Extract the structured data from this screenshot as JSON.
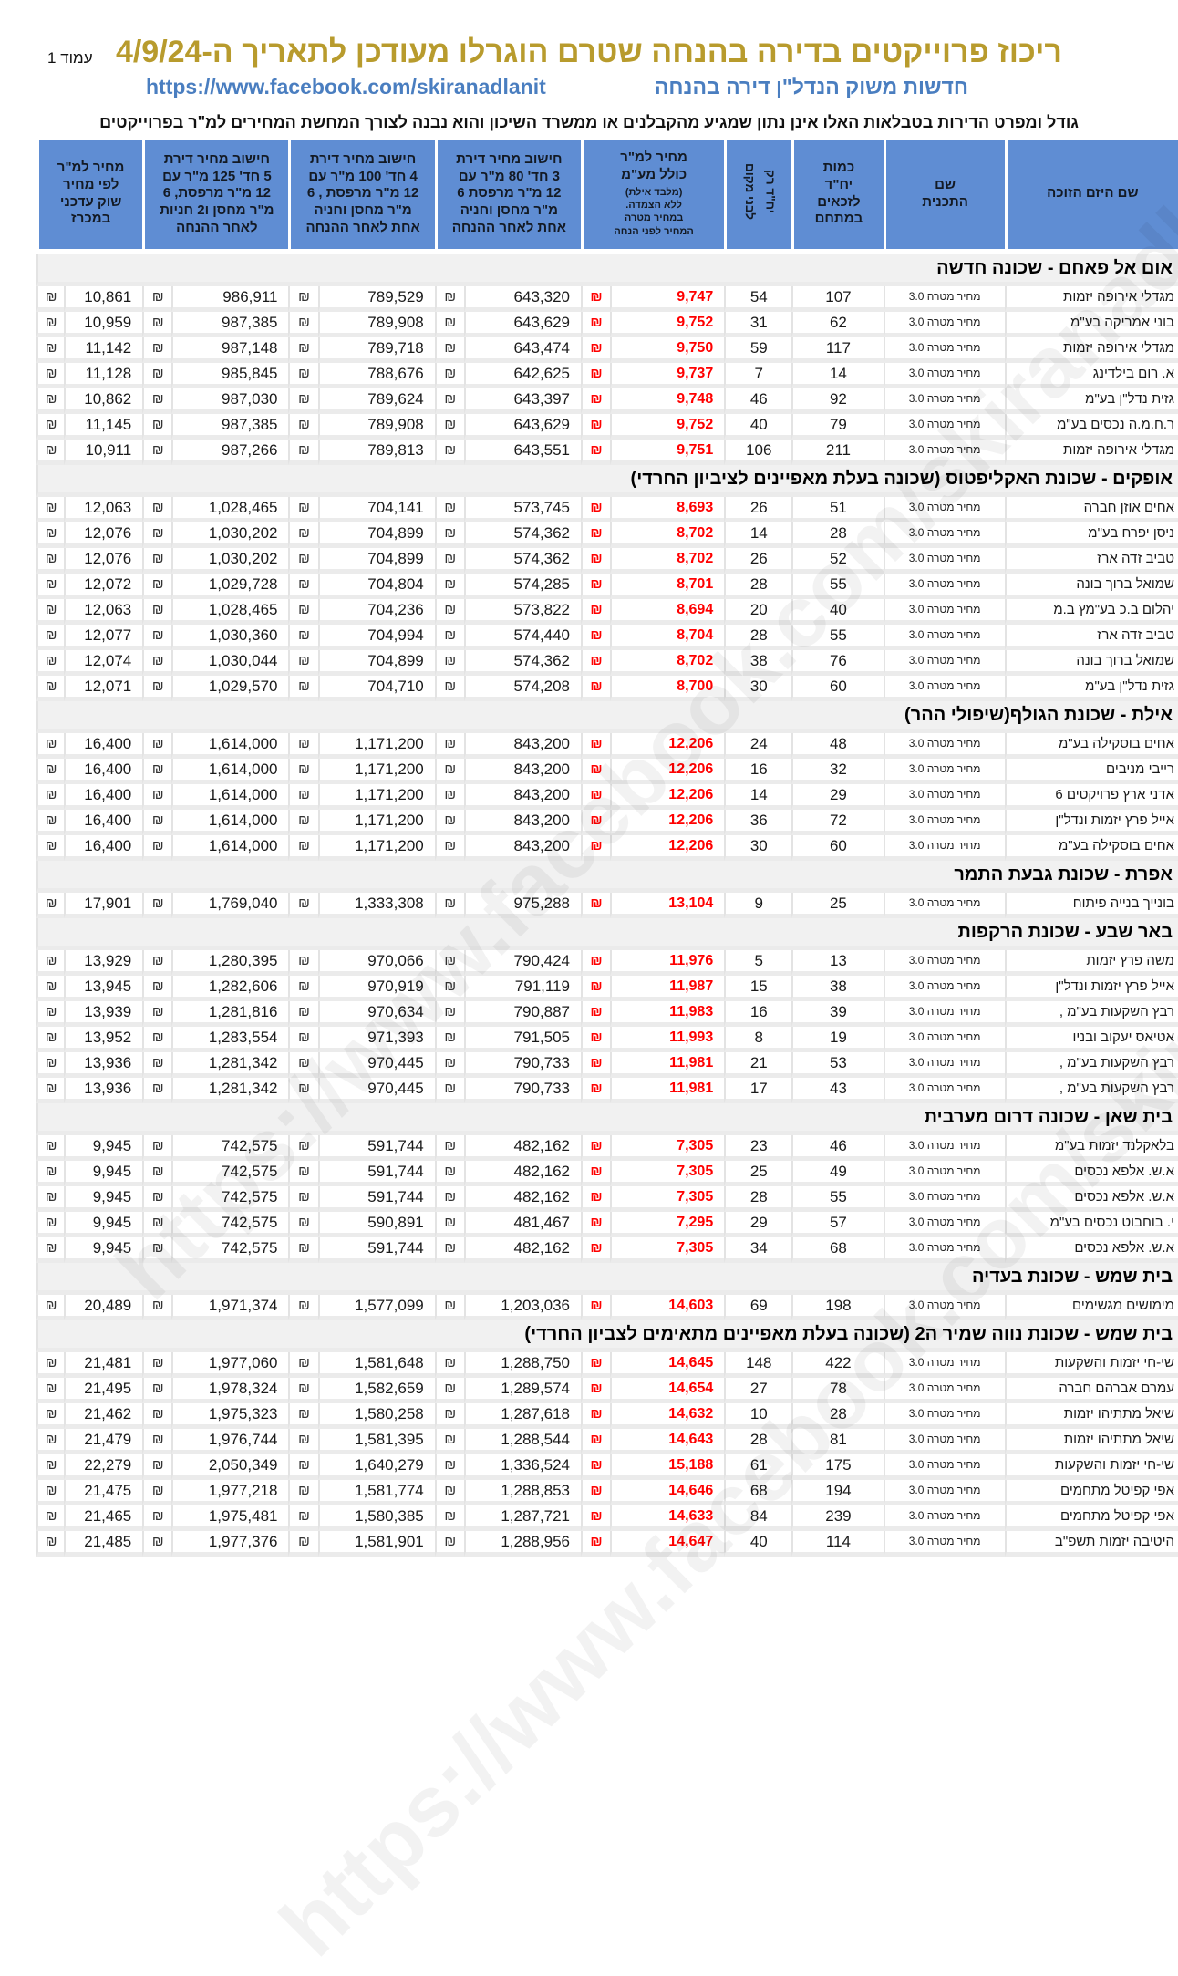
{
  "page": {
    "page_label": "עמוד 1",
    "title": "ריכוז פרוייקטים בדירה בהנחה שטרם הוגרלו מעודכן לתאריך ה-4/9/24",
    "subtitle_right": "חדשות משוק הנדל\"ן דירה בהנחה",
    "link": "https://www.facebook.com/skiranadlanit",
    "disclaimer": "גודל ומפרט הדירות בטבלאות האלו אינן נתון שמגיע מהקבלנים או ממשרד השיכון והוא נבנה לצורך המחשת המחירים למ\"ר בפרוייקטים",
    "watermark": "https://www.facebook.com/skiranadlanit"
  },
  "colors": {
    "title_gold": "#b89b2d",
    "link_blue": "#4a7ec0",
    "header_blue": "#5f8dd3",
    "price_red": "#ff0000",
    "row_separator": "#ebebeb"
  },
  "table": {
    "currency_symbol": "₪",
    "headers": {
      "developer": "שם היזם הזוכה",
      "plan": "שם\nהתכנית",
      "units_total": "כמות\nיח\"ד\nלזכאים\nבמתחם",
      "units_local": "יח\"ד רק\nלבני מקום",
      "price_sqm_main": "מחיר למ\"ר\nכולל מע\"מ",
      "price_sqm_sub": "(מלבד אילת)\nללא הצמדה.\nבמחיר מטרה\nהמחיר לפני הנחה",
      "apt3": "חישוב מחיר דירת\n3 חד' 80 מ\"ר עם\n12 מ\"ר מרפסת 6\nמ\"ר מחסן וחניה\nאחת לאחר ההנחה",
      "apt4": "חישוב מחיר דירת\n4 חד' 100 מ\"ר עם\n12 מ\"ר מרפסת , 6\nמ\"ר מחסן וחניה\nאחת לאחר ההנחה",
      "apt5": "חישוב מחיר דירת\n5 חד' 125 מ\"ר עם\n12 מ\"ר מרפסת, 6\nמ\"ר מחסן ו2 חניות\nלאחר ההנחה",
      "market_sqm": "מחיר למ\"ר\nלפי מחיר\nשוק עדכני\nבמכרז"
    },
    "sections": [
      {
        "name": "אום אל פאחם - שכונה חדשה",
        "rows": [
          {
            "developer": "מגדלי אירופה יזמות",
            "plan": "מחיר מטרה 3.0",
            "units_total": "107",
            "units_local": "54",
            "price_sqm": "9,747",
            "apt3": "643,320",
            "apt4": "789,529",
            "apt5": "986,911",
            "market_sqm": "10,861"
          },
          {
            "developer": "בוני אמריקה בע\"מ",
            "plan": "מחיר מטרה 3.0",
            "units_total": "62",
            "units_local": "31",
            "price_sqm": "9,752",
            "apt3": "643,629",
            "apt4": "789,908",
            "apt5": "987,385",
            "market_sqm": "10,959"
          },
          {
            "developer": "מגדלי אירופה יזמות",
            "plan": "מחיר מטרה 3.0",
            "units_total": "117",
            "units_local": "59",
            "price_sqm": "9,750",
            "apt3": "643,474",
            "apt4": "789,718",
            "apt5": "987,148",
            "market_sqm": "11,142"
          },
          {
            "developer": "א. רום בילדינג",
            "plan": "מחיר מטרה 3.0",
            "units_total": "14",
            "units_local": "7",
            "price_sqm": "9,737",
            "apt3": "642,625",
            "apt4": "788,676",
            "apt5": "985,845",
            "market_sqm": "11,128"
          },
          {
            "developer": "גזית נדל\"ן בע\"מ",
            "plan": "מחיר מטרה 3.0",
            "units_total": "92",
            "units_local": "46",
            "price_sqm": "9,748",
            "apt3": "643,397",
            "apt4": "789,624",
            "apt5": "987,030",
            "market_sqm": "10,862"
          },
          {
            "developer": "ר.ח.מ.ה נכסים בע\"מ",
            "plan": "מחיר מטרה 3.0",
            "units_total": "79",
            "units_local": "40",
            "price_sqm": "9,752",
            "apt3": "643,629",
            "apt4": "789,908",
            "apt5": "987,385",
            "market_sqm": "11,145"
          },
          {
            "developer": "מגדלי אירופה יזמות",
            "plan": "מחיר מטרה 3.0",
            "units_total": "211",
            "units_local": "106",
            "price_sqm": "9,751",
            "apt3": "643,551",
            "apt4": "789,813",
            "apt5": "987,266",
            "market_sqm": "10,911"
          }
        ]
      },
      {
        "name": "אופקים - שכונת האקליפטוס (שכונה בעלת מאפיינים לציביון החרדי)",
        "rows": [
          {
            "developer": "אחים אוזן חברה",
            "plan": "מחיר מטרה 3.0",
            "units_total": "51",
            "units_local": "26",
            "price_sqm": "8,693",
            "apt3": "573,745",
            "apt4": "704,141",
            "apt5": "1,028,465",
            "market_sqm": "12,063"
          },
          {
            "developer": "ניסן יפרח בע\"מ",
            "plan": "מחיר מטרה 3.0",
            "units_total": "28",
            "units_local": "14",
            "price_sqm": "8,702",
            "apt3": "574,362",
            "apt4": "704,899",
            "apt5": "1,030,202",
            "market_sqm": "12,076"
          },
          {
            "developer": "טביב זדה ארז",
            "plan": "מחיר מטרה 3.0",
            "units_total": "52",
            "units_local": "26",
            "price_sqm": "8,702",
            "apt3": "574,362",
            "apt4": "704,899",
            "apt5": "1,030,202",
            "market_sqm": "12,076"
          },
          {
            "developer": "שמואל ברוך בונה",
            "plan": "מחיר מטרה 3.0",
            "units_total": "55",
            "units_local": "28",
            "price_sqm": "8,701",
            "apt3": "574,285",
            "apt4": "704,804",
            "apt5": "1,029,728",
            "market_sqm": "12,072"
          },
          {
            "developer": "יהלום ב.כ בע\"מץ ב.מ",
            "plan": "מחיר מטרה 3.0",
            "units_total": "40",
            "units_local": "20",
            "price_sqm": "8,694",
            "apt3": "573,822",
            "apt4": "704,236",
            "apt5": "1,028,465",
            "market_sqm": "12,063"
          },
          {
            "developer": "טביב זדה ארז",
            "plan": "מחיר מטרה 3.0",
            "units_total": "55",
            "units_local": "28",
            "price_sqm": "8,704",
            "apt3": "574,440",
            "apt4": "704,994",
            "apt5": "1,030,360",
            "market_sqm": "12,077"
          },
          {
            "developer": "שמואל ברוך בונה",
            "plan": "מחיר מטרה 3.0",
            "units_total": "76",
            "units_local": "38",
            "price_sqm": "8,702",
            "apt3": "574,362",
            "apt4": "704,899",
            "apt5": "1,030,044",
            "market_sqm": "12,074"
          },
          {
            "developer": "גזית נדל\"ן בע\"מ",
            "plan": "מחיר מטרה 3.0",
            "units_total": "60",
            "units_local": "30",
            "price_sqm": "8,700",
            "apt3": "574,208",
            "apt4": "704,710",
            "apt5": "1,029,570",
            "market_sqm": "12,071"
          }
        ]
      },
      {
        "name": "אילת - שכונת הגולף(שיפולי ההר)",
        "rows": [
          {
            "developer": "אחים בוסקילה בע\"מ",
            "plan": "מחיר מטרה 3.0",
            "units_total": "48",
            "units_local": "24",
            "price_sqm": "12,206",
            "apt3": "843,200",
            "apt4": "1,171,200",
            "apt5": "1,614,000",
            "market_sqm": "16,400"
          },
          {
            "developer": "רייבי מניבים",
            "plan": "מחיר מטרה 3.0",
            "units_total": "32",
            "units_local": "16",
            "price_sqm": "12,206",
            "apt3": "843,200",
            "apt4": "1,171,200",
            "apt5": "1,614,000",
            "market_sqm": "16,400"
          },
          {
            "developer": "אדני ארץ פרויקטים 6",
            "plan": "מחיר מטרה 3.0",
            "units_total": "29",
            "units_local": "14",
            "price_sqm": "12,206",
            "apt3": "843,200",
            "apt4": "1,171,200",
            "apt5": "1,614,000",
            "market_sqm": "16,400"
          },
          {
            "developer": "אייל פרץ יזמות ונדל\"ן",
            "plan": "מחיר מטרה 3.0",
            "units_total": "72",
            "units_local": "36",
            "price_sqm": "12,206",
            "apt3": "843,200",
            "apt4": "1,171,200",
            "apt5": "1,614,000",
            "market_sqm": "16,400"
          },
          {
            "developer": "אחים בוסקילה בע\"מ",
            "plan": "מחיר מטרה 3.0",
            "units_total": "60",
            "units_local": "30",
            "price_sqm": "12,206",
            "apt3": "843,200",
            "apt4": "1,171,200",
            "apt5": "1,614,000",
            "market_sqm": "16,400"
          }
        ]
      },
      {
        "name": "אפרת - שכונת גבעת התמר",
        "rows": [
          {
            "developer": "בונייך בנייה פיתוח",
            "plan": "מחיר מטרה 3.0",
            "units_total": "25",
            "units_local": "9",
            "price_sqm": "13,104",
            "apt3": "975,288",
            "apt4": "1,333,308",
            "apt5": "1,769,040",
            "market_sqm": "17,901"
          }
        ]
      },
      {
        "name": "באר שבע - שכונת הרקפות",
        "rows": [
          {
            "developer": "משה פרץ יזמות",
            "plan": "מחיר מטרה 3.0",
            "units_total": "13",
            "units_local": "5",
            "price_sqm": "11,976",
            "apt3": "790,424",
            "apt4": "970,066",
            "apt5": "1,280,395",
            "market_sqm": "13,929"
          },
          {
            "developer": "אייל פרץ יזמות ונדל\"ן",
            "plan": "מחיר מטרה 3.0",
            "units_total": "38",
            "units_local": "15",
            "price_sqm": "11,987",
            "apt3": "791,119",
            "apt4": "970,919",
            "apt5": "1,282,606",
            "market_sqm": "13,945"
          },
          {
            "developer": "רבץ השקעות בע\"מ ,",
            "plan": "מחיר מטרה 3.0",
            "units_total": "39",
            "units_local": "16",
            "price_sqm": "11,983",
            "apt3": "790,887",
            "apt4": "970,634",
            "apt5": "1,281,816",
            "market_sqm": "13,939"
          },
          {
            "developer": "אטיאס יעקוב ובניו",
            "plan": "מחיר מטרה 3.0",
            "units_total": "19",
            "units_local": "8",
            "price_sqm": "11,993",
            "apt3": "791,505",
            "apt4": "971,393",
            "apt5": "1,283,554",
            "market_sqm": "13,952"
          },
          {
            "developer": "רבץ השקעות בע\"מ ,",
            "plan": "מחיר מטרה 3.0",
            "units_total": "53",
            "units_local": "21",
            "price_sqm": "11,981",
            "apt3": "790,733",
            "apt4": "970,445",
            "apt5": "1,281,342",
            "market_sqm": "13,936"
          },
          {
            "developer": "רבץ השקעות בע\"מ ,",
            "plan": "מחיר מטרה 3.0",
            "units_total": "43",
            "units_local": "17",
            "price_sqm": "11,981",
            "apt3": "790,733",
            "apt4": "970,445",
            "apt5": "1,281,342",
            "market_sqm": "13,936"
          }
        ]
      },
      {
        "name": "בית שאן - שכונה דרום מערבית",
        "rows": [
          {
            "developer": "בלאקלנד יזמות בע\"מ",
            "plan": "מחיר מטרה 3.0",
            "units_total": "46",
            "units_local": "23",
            "price_sqm": "7,305",
            "apt3": "482,162",
            "apt4": "591,744",
            "apt5": "742,575",
            "market_sqm": "9,945"
          },
          {
            "developer": "א.ש. אלפא נכסים",
            "plan": "מחיר מטרה 3.0",
            "units_total": "49",
            "units_local": "25",
            "price_sqm": "7,305",
            "apt3": "482,162",
            "apt4": "591,744",
            "apt5": "742,575",
            "market_sqm": "9,945"
          },
          {
            "developer": "א.ש. אלפא נכסים",
            "plan": "מחיר מטרה 3.0",
            "units_total": "55",
            "units_local": "28",
            "price_sqm": "7,305",
            "apt3": "482,162",
            "apt4": "591,744",
            "apt5": "742,575",
            "market_sqm": "9,945"
          },
          {
            "developer": "י. בוחבוט נכסים בע\"מ",
            "plan": "מחיר מטרה 3.0",
            "units_total": "57",
            "units_local": "29",
            "price_sqm": "7,295",
            "apt3": "481,467",
            "apt4": "590,891",
            "apt5": "742,575",
            "market_sqm": "9,945"
          },
          {
            "developer": "א.ש. אלפא נכסים",
            "plan": "מחיר מטרה 3.0",
            "units_total": "68",
            "units_local": "34",
            "price_sqm": "7,305",
            "apt3": "482,162",
            "apt4": "591,744",
            "apt5": "742,575",
            "market_sqm": "9,945"
          }
        ]
      },
      {
        "name": "בית שמש - שכונת בעדיה",
        "rows": [
          {
            "developer": "מימושים מגשימים",
            "plan": "מחיר מטרה 3.0",
            "units_total": "198",
            "units_local": "69",
            "price_sqm": "14,603",
            "apt3": "1,203,036",
            "apt4": "1,577,099",
            "apt5": "1,971,374",
            "market_sqm": "20,489"
          }
        ]
      },
      {
        "name": "בית שמש - שכונת נווה שמיר ה2 (שכונה בעלת מאפיינים מתאימים לצביון החרדי)",
        "rows": [
          {
            "developer": "שי-חי יזמות והשקעות",
            "plan": "מחיר מטרה 3.0",
            "units_total": "422",
            "units_local": "148",
            "price_sqm": "14,645",
            "apt3": "1,288,750",
            "apt4": "1,581,648",
            "apt5": "1,977,060",
            "market_sqm": "21,481"
          },
          {
            "developer": "עמרם אברהם חברה",
            "plan": "מחיר מטרה 3.0",
            "units_total": "78",
            "units_local": "27",
            "price_sqm": "14,654",
            "apt3": "1,289,574",
            "apt4": "1,582,659",
            "apt5": "1,978,324",
            "market_sqm": "21,495"
          },
          {
            "developer": "שיאל מתתיהו יזמות",
            "plan": "מחיר מטרה 3.0",
            "units_total": "28",
            "units_local": "10",
            "price_sqm": "14,632",
            "apt3": "1,287,618",
            "apt4": "1,580,258",
            "apt5": "1,975,323",
            "market_sqm": "21,462"
          },
          {
            "developer": "שיאל מתתיהו יזמות",
            "plan": "מחיר מטרה 3.0",
            "units_total": "81",
            "units_local": "28",
            "price_sqm": "14,643",
            "apt3": "1,288,544",
            "apt4": "1,581,395",
            "apt5": "1,976,744",
            "market_sqm": "21,479"
          },
          {
            "developer": "שי-חי יזמות והשקעות",
            "plan": "מחיר מטרה 3.0",
            "units_total": "175",
            "units_local": "61",
            "price_sqm": "15,188",
            "apt3": "1,336,524",
            "apt4": "1,640,279",
            "apt5": "2,050,349",
            "market_sqm": "22,279"
          },
          {
            "developer": "אפי קפיטל מתחמים",
            "plan": "מחיר מטרה 3.0",
            "units_total": "194",
            "units_local": "68",
            "price_sqm": "14,646",
            "apt3": "1,288,853",
            "apt4": "1,581,774",
            "apt5": "1,977,218",
            "market_sqm": "21,475"
          },
          {
            "developer": "אפי קפיטל מתחמים",
            "plan": "מחיר מטרה 3.0",
            "units_total": "239",
            "units_local": "84",
            "price_sqm": "14,633",
            "apt3": "1,287,721",
            "apt4": "1,580,385",
            "apt5": "1,975,481",
            "market_sqm": "21,465"
          },
          {
            "developer": "היטיבה יזמות תשפ\"ב",
            "plan": "מחיר מטרה 3.0",
            "units_total": "114",
            "units_local": "40",
            "price_sqm": "14,647",
            "apt3": "1,288,956",
            "apt4": "1,581,901",
            "apt5": "1,977,376",
            "market_sqm": "21,485"
          }
        ]
      }
    ]
  }
}
